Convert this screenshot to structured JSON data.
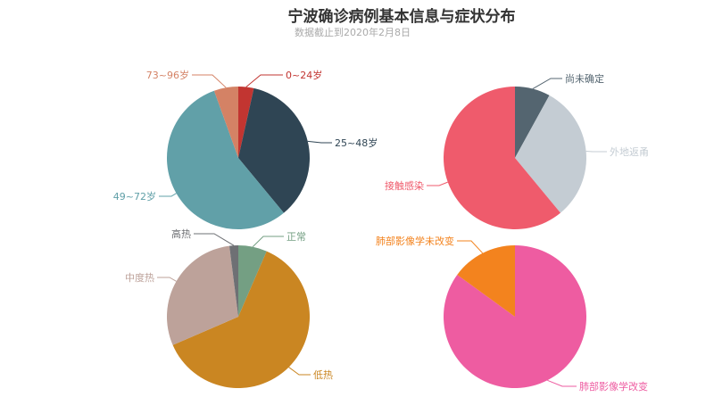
{
  "title": "宁波确诊病例基本信息与症状分布",
  "subtitle": "数据截止到2020年2月8日",
  "chart_data": [
    {
      "type": "pie",
      "slices": [
        {
          "name": "0~24岁",
          "value": 3.5,
          "color": "#c23531"
        },
        {
          "name": "25~48岁",
          "value": 35.5,
          "color": "#2f4554"
        },
        {
          "name": "49~72岁",
          "value": 55.5,
          "color": "#61a0a8"
        },
        {
          "name": "73~96岁",
          "value": 5.5,
          "color": "#d48265"
        }
      ]
    },
    {
      "type": "pie",
      "slices": [
        {
          "name": "尚未确定",
          "value": 8,
          "color": "#546570"
        },
        {
          "name": "外地返甬",
          "value": 31,
          "color": "#c4ccd3"
        },
        {
          "name": "接触感染",
          "value": 61,
          "color": "#ef5b6c"
        }
      ]
    },
    {
      "type": "pie",
      "slices": [
        {
          "name": "正常",
          "value": 6.5,
          "color": "#749f83"
        },
        {
          "name": "低热",
          "value": 62,
          "color": "#ca8622"
        },
        {
          "name": "中度热",
          "value": 29.5,
          "color": "#bda29a"
        },
        {
          "name": "高热",
          "value": 2,
          "color": "#6e7074"
        }
      ]
    },
    {
      "type": "pie",
      "slices": [
        {
          "name": "肺部影像学改变",
          "value": 85,
          "color": "#ee5ca1"
        },
        {
          "name": "肺部影像学未改变",
          "value": 15,
          "color": "#f3831e"
        }
      ]
    }
  ]
}
